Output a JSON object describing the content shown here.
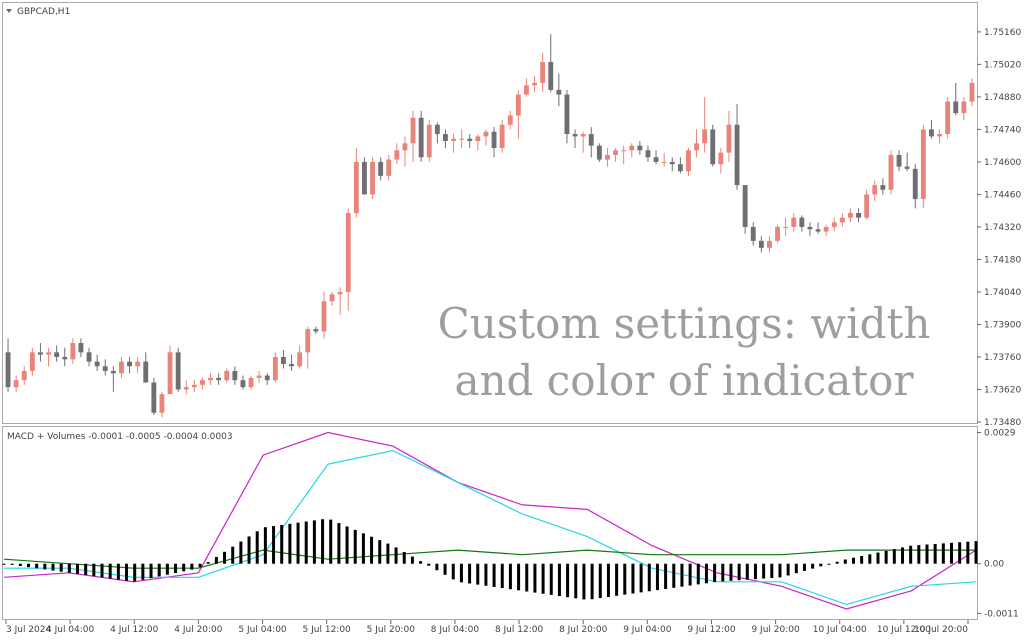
{
  "title": "GBPCAD,H1",
  "watermark": {
    "line1": "Custom settings: width",
    "line2": "and color of indicator"
  },
  "colors": {
    "bull": "#e8847a",
    "bear": "#6e6e73",
    "macd_line": "#cc22cc",
    "signal_line": "#22d8e8",
    "volume_line": "#117711",
    "histogram": "#000000"
  },
  "chart_data": [
    {
      "type": "candlestick",
      "symbol": "GBPCAD",
      "timeframe": "H1",
      "ylim": [
        1.7348,
        1.7528
      ],
      "yticks": [
        "1.75160",
        "1.75020",
        "1.74880",
        "1.74740",
        "1.74600",
        "1.74460",
        "1.74320",
        "1.74180",
        "1.74040",
        "1.73900",
        "1.73760",
        "1.73620",
        "1.73480"
      ],
      "xticks": [
        "3 Jul 2024",
        "4 Jul 04:00",
        "4 Jul 12:00",
        "4 Jul 20:00",
        "5 Jul 04:00",
        "5 Jul 12:00",
        "5 Jul 20:00",
        "8 Jul 04:00",
        "8 Jul 12:00",
        "8 Jul 20:00",
        "9 Jul 04:00",
        "9 Jul 12:00",
        "9 Jul 20:00",
        "10 Jul 04:00",
        "10 Jul 12:00",
        "10 Jul 20:00"
      ],
      "candles": [
        [
          1.7378,
          1.7384,
          1.7361,
          1.7363
        ],
        [
          1.7363,
          1.7368,
          1.7361,
          1.7366
        ],
        [
          1.7366,
          1.7372,
          1.7364,
          1.737
        ],
        [
          1.737,
          1.738,
          1.7368,
          1.7378
        ],
        [
          1.7378,
          1.7382,
          1.7374,
          1.7377
        ],
        [
          1.7377,
          1.738,
          1.7372,
          1.7378
        ],
        [
          1.7378,
          1.7381,
          1.7374,
          1.7376
        ],
        [
          1.7376,
          1.738,
          1.7372,
          1.7375
        ],
        [
          1.7375,
          1.7384,
          1.7373,
          1.7382
        ],
        [
          1.7382,
          1.7384,
          1.7376,
          1.7378
        ],
        [
          1.7378,
          1.738,
          1.7372,
          1.7374
        ],
        [
          1.7374,
          1.7377,
          1.737,
          1.7372
        ],
        [
          1.7372,
          1.7375,
          1.7368,
          1.737
        ],
        [
          1.737,
          1.7372,
          1.7361,
          1.7369
        ],
        [
          1.7369,
          1.7376,
          1.7367,
          1.7374
        ],
        [
          1.7374,
          1.7376,
          1.7369,
          1.7372
        ],
        [
          1.7372,
          1.7376,
          1.7369,
          1.7374
        ],
        [
          1.7374,
          1.7378,
          1.7365,
          1.7365
        ],
        [
          1.7365,
          1.7367,
          1.7351,
          1.7352
        ],
        [
          1.7352,
          1.7361,
          1.735,
          1.736
        ],
        [
          1.736,
          1.7381,
          1.736,
          1.7378
        ],
        [
          1.7378,
          1.738,
          1.7361,
          1.7362
        ],
        [
          1.7362,
          1.7366,
          1.736,
          1.7363
        ],
        [
          1.7363,
          1.7366,
          1.7361,
          1.7364
        ],
        [
          1.7364,
          1.7367,
          1.7362,
          1.7366
        ],
        [
          1.7366,
          1.7369,
          1.7364,
          1.7367
        ],
        [
          1.7367,
          1.7369,
          1.7364,
          1.7366
        ],
        [
          1.7366,
          1.7371,
          1.7365,
          1.737
        ],
        [
          1.737,
          1.7372,
          1.7364,
          1.7366
        ],
        [
          1.7366,
          1.7368,
          1.7362,
          1.7363
        ],
        [
          1.7363,
          1.7368,
          1.7362,
          1.7367
        ],
        [
          1.7367,
          1.737,
          1.7365,
          1.7368
        ],
        [
          1.7368,
          1.7369,
          1.7364,
          1.7366
        ],
        [
          1.7366,
          1.7378,
          1.7365,
          1.7376
        ],
        [
          1.7376,
          1.7379,
          1.7371,
          1.7373
        ],
        [
          1.7373,
          1.7377,
          1.737,
          1.7372
        ],
        [
          1.7372,
          1.7381,
          1.7371,
          1.7378
        ],
        [
          1.7378,
          1.7389,
          1.7371,
          1.7388
        ],
        [
          1.7388,
          1.7389,
          1.7386,
          1.7387
        ],
        [
          1.7387,
          1.7404,
          1.7384,
          1.74
        ],
        [
          1.74,
          1.7404,
          1.7398,
          1.7403
        ],
        [
          1.7403,
          1.7406,
          1.7394,
          1.7404
        ],
        [
          1.7404,
          1.744,
          1.7396,
          1.7438
        ],
        [
          1.7438,
          1.7466,
          1.7436,
          1.746
        ],
        [
          1.746,
          1.7462,
          1.7446,
          1.7446
        ],
        [
          1.7446,
          1.7462,
          1.7444,
          1.746
        ],
        [
          1.746,
          1.7462,
          1.7452,
          1.7454
        ],
        [
          1.7454,
          1.7463,
          1.7452,
          1.7461
        ],
        [
          1.7461,
          1.7468,
          1.7459,
          1.7465
        ],
        [
          1.7465,
          1.7471,
          1.7458,
          1.7468
        ],
        [
          1.7468,
          1.7482,
          1.746,
          1.7479
        ],
        [
          1.7479,
          1.7482,
          1.746,
          1.7462
        ],
        [
          1.7462,
          1.7478,
          1.746,
          1.7476
        ],
        [
          1.7476,
          1.7477,
          1.7468,
          1.7472
        ],
        [
          1.7472,
          1.7474,
          1.7466,
          1.7469
        ],
        [
          1.7469,
          1.7472,
          1.7464,
          1.747
        ],
        [
          1.747,
          1.7474,
          1.7466,
          1.747
        ],
        [
          1.747,
          1.7472,
          1.7466,
          1.7469
        ],
        [
          1.7469,
          1.7472,
          1.7465,
          1.7471
        ],
        [
          1.7471,
          1.7474,
          1.7467,
          1.7473
        ],
        [
          1.7473,
          1.7475,
          1.7462,
          1.7466
        ],
        [
          1.7466,
          1.7478,
          1.7464,
          1.7476
        ],
        [
          1.7476,
          1.7482,
          1.7474,
          1.748
        ],
        [
          1.748,
          1.7491,
          1.747,
          1.7489
        ],
        [
          1.7489,
          1.7496,
          1.7488,
          1.7493
        ],
        [
          1.7493,
          1.7497,
          1.749,
          1.7494
        ],
        [
          1.7494,
          1.7507,
          1.749,
          1.7503
        ],
        [
          1.7503,
          1.7515,
          1.749,
          1.7491
        ],
        [
          1.7491,
          1.7498,
          1.7484,
          1.7489
        ],
        [
          1.7489,
          1.7491,
          1.7468,
          1.7472
        ],
        [
          1.7472,
          1.7474,
          1.7466,
          1.7471
        ],
        [
          1.7471,
          1.7473,
          1.7464,
          1.7472
        ],
        [
          1.7472,
          1.7475,
          1.7462,
          1.7467
        ],
        [
          1.7467,
          1.7468,
          1.746,
          1.7461
        ],
        [
          1.7461,
          1.7466,
          1.7458,
          1.7463
        ],
        [
          1.7463,
          1.7466,
          1.746,
          1.7465
        ],
        [
          1.7465,
          1.7467,
          1.7459,
          1.7465
        ],
        [
          1.7465,
          1.7468,
          1.7462,
          1.7467
        ],
        [
          1.7467,
          1.7469,
          1.7463,
          1.7465
        ],
        [
          1.7465,
          1.7467,
          1.746,
          1.7462
        ],
        [
          1.7462,
          1.7465,
          1.7459,
          1.746
        ],
        [
          1.746,
          1.7464,
          1.7458,
          1.746
        ],
        [
          1.746,
          1.7462,
          1.7456,
          1.7459
        ],
        [
          1.7459,
          1.7462,
          1.7455,
          1.7456
        ],
        [
          1.7456,
          1.7466,
          1.7454,
          1.7465
        ],
        [
          1.7465,
          1.7474,
          1.7462,
          1.7468
        ],
        [
          1.7468,
          1.7488,
          1.7464,
          1.7474
        ],
        [
          1.7474,
          1.7476,
          1.7458,
          1.7459
        ],
        [
          1.7459,
          1.7466,
          1.7455,
          1.7464
        ],
        [
          1.7464,
          1.7482,
          1.746,
          1.7476
        ],
        [
          1.7476,
          1.7485,
          1.7448,
          1.745
        ],
        [
          1.745,
          1.745,
          1.7429,
          1.7432
        ],
        [
          1.7432,
          1.7434,
          1.7424,
          1.7426
        ],
        [
          1.7426,
          1.7428,
          1.7421,
          1.7423
        ],
        [
          1.7423,
          1.7428,
          1.7421,
          1.7426
        ],
        [
          1.7426,
          1.7433,
          1.7425,
          1.7432
        ],
        [
          1.7432,
          1.7436,
          1.7428,
          1.7432
        ],
        [
          1.7432,
          1.7438,
          1.743,
          1.7436
        ],
        [
          1.7436,
          1.7437,
          1.743,
          1.7432
        ],
        [
          1.7432,
          1.7434,
          1.7428,
          1.7431
        ],
        [
          1.7431,
          1.7434,
          1.7429,
          1.743
        ],
        [
          1.743,
          1.7433,
          1.7428,
          1.7432
        ],
        [
          1.7432,
          1.7436,
          1.743,
          1.7434
        ],
        [
          1.7434,
          1.7438,
          1.7432,
          1.7436
        ],
        [
          1.7436,
          1.744,
          1.7434,
          1.7438
        ],
        [
          1.7438,
          1.744,
          1.7434,
          1.7436
        ],
        [
          1.7436,
          1.7448,
          1.7435,
          1.7446
        ],
        [
          1.7446,
          1.7452,
          1.7443,
          1.745
        ],
        [
          1.745,
          1.7453,
          1.7446,
          1.7448
        ],
        [
          1.7448,
          1.7465,
          1.7446,
          1.7463
        ],
        [
          1.7463,
          1.7465,
          1.7456,
          1.7458
        ],
        [
          1.7458,
          1.7464,
          1.7456,
          1.7457
        ],
        [
          1.7457,
          1.7459,
          1.744,
          1.7444
        ],
        [
          1.7444,
          1.7476,
          1.744,
          1.7474
        ],
        [
          1.7474,
          1.7478,
          1.747,
          1.7471
        ],
        [
          1.7471,
          1.7474,
          1.7468,
          1.7472
        ],
        [
          1.7472,
          1.7488,
          1.747,
          1.7486
        ],
        [
          1.7486,
          1.7494,
          1.748,
          1.7481
        ],
        [
          1.7481,
          1.7488,
          1.7478,
          1.7486
        ],
        [
          1.7486,
          1.7496,
          1.7484,
          1.7494
        ]
      ]
    },
    {
      "type": "line",
      "title": "MACD + Volumes -0.0001 -0.0005 -0.0004 0.0003",
      "ylim": [
        -0.0012,
        0.003
      ],
      "yticks": [
        "0.0029",
        "0.00",
        "-0.0011"
      ],
      "series": [
        {
          "name": "MACD",
          "values": [
            -0.0003,
            -0.0002,
            -0.0004,
            -0.0002,
            0.0024,
            0.0029,
            0.0026,
            0.0018,
            0.0013,
            0.0012,
            0.0004,
            -0.0002,
            -0.0005,
            -0.001,
            -0.0006,
            0.0003
          ]
        },
        {
          "name": "Signal",
          "values": [
            -0.0001,
            -0.0001,
            -0.0003,
            -0.0003,
            0.0002,
            0.0022,
            0.0025,
            0.0018,
            0.0011,
            0.0006,
            -0.0001,
            -0.0004,
            -0.0004,
            -0.0009,
            -0.0005,
            -0.0004
          ]
        },
        {
          "name": "Volumes",
          "values": [
            0.0001,
            0.0,
            -0.0001,
            -0.0001,
            0.0003,
            0.0001,
            0.0002,
            0.0003,
            0.0002,
            0.0003,
            0.0002,
            0.0002,
            0.0002,
            0.0003,
            0.0003,
            0.0003
          ]
        },
        {
          "name": "Histogram",
          "values": [
            0.0,
            -0.0002,
            -0.0004,
            -0.0001,
            0.0008,
            0.001,
            0.0004,
            -0.0004,
            -0.0006,
            -0.0008,
            -0.0006,
            -0.0004,
            -0.0003,
            0.0001,
            0.0004,
            0.0005
          ]
        }
      ]
    }
  ]
}
